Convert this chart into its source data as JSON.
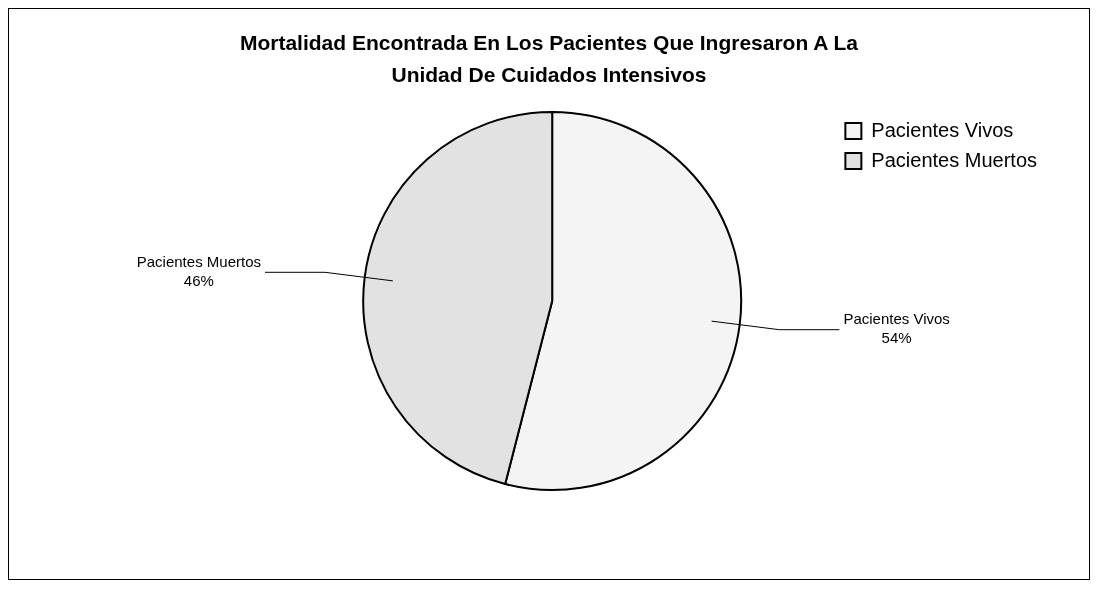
{
  "chart_data": {
    "type": "pie",
    "title": "Mortalidad Encontrada En Los Pacientes Que Ingresaron A La Unidad De Cuidados Intensivos",
    "categories": [
      "Pacientes Vivos",
      "Pacientes Muertos"
    ],
    "values": [
      54,
      46
    ],
    "colors": [
      "#f4f4f4",
      "#e2e2e2"
    ],
    "value_labels": [
      "54%",
      "46%"
    ],
    "legend": "top right"
  }
}
